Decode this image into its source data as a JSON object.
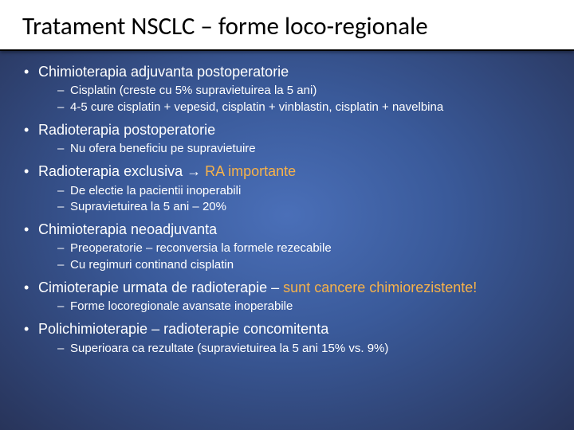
{
  "title": "Tratament NSCLC – forme loco-regionale",
  "bullets": [
    {
      "text": "Chimioterapia adjuvanta postoperatorie",
      "sub": [
        "Cisplatin (creste cu 5% supravietuirea la 5 ani)",
        "4-5 cure cisplatin + vepesid, cisplatin + vinblastin, cisplatin + navelbina"
      ]
    },
    {
      "text": "Radioterapia postoperatorie",
      "sub": [
        "Nu ofera beneficiu pe supravietuire"
      ]
    },
    {
      "text_prefix": "Radioterapia exclusiva → ",
      "text_accent": "RA importante",
      "sub": [
        "De electie la pacientii inoperabili",
        "Supravietuirea la 5 ani – 20%"
      ]
    },
    {
      "text": "Chimioterapia neoadjuvanta",
      "sub": [
        "Preoperatorie – reconversia la formele rezecabile",
        "Cu regimuri continand cisplatin"
      ]
    },
    {
      "text_prefix": "Cimioterapie urmata de radioterapie – ",
      "text_accent": "sunt cancere chimiorezistente!",
      "sub": [
        "Forme locoregionale avansate inoperabile"
      ]
    },
    {
      "text": "Polichimioterapie – radioterapie concomitenta",
      "sub": [
        "Superioara ca rezultate (supravietuirea la 5 ani 15% vs. 9%)"
      ]
    }
  ],
  "colors": {
    "accent": "#f7b24a",
    "text": "#ffffff",
    "title_bg": "#ffffff",
    "title_text": "#000000"
  },
  "fontsize": {
    "title": 31,
    "level1": 18,
    "level2": 15
  }
}
